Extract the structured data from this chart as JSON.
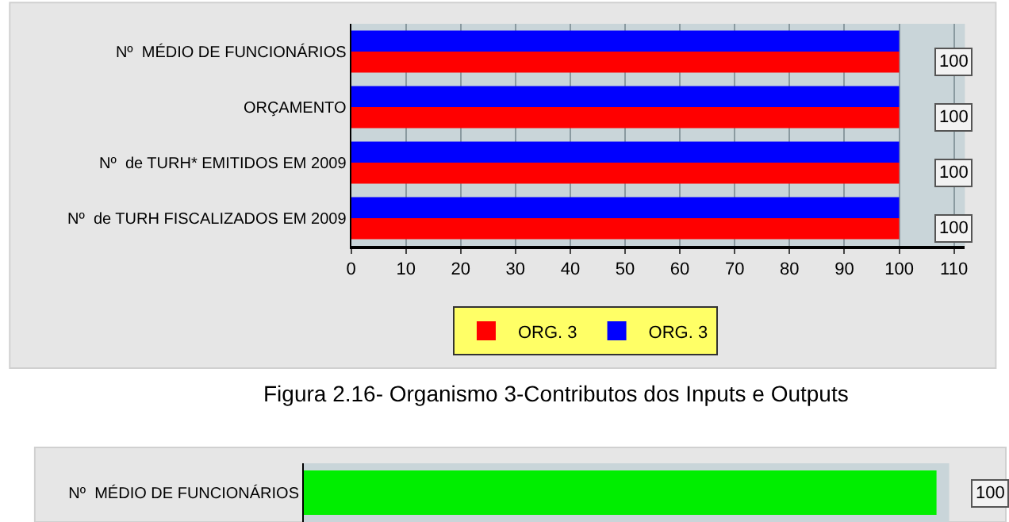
{
  "chart_data": [
    {
      "type": "bar",
      "orientation": "horizontal",
      "categories": [
        "Nº  MÉDIO DE FUNCIONÁRIOS",
        "ORÇAMENTO",
        "Nº  de TURH* EMITIDOS EM 2009",
        "Nº  de TURH FISCALIZADOS EM 2009"
      ],
      "series": [
        {
          "name": "ORG. 3",
          "color": "#ff0000",
          "values": [
            100,
            100,
            100,
            100
          ],
          "value_labels": [
            "100",
            "100",
            "100",
            "100"
          ]
        },
        {
          "name": "ORG. 3",
          "color": "#0000ff",
          "values": [
            100,
            100,
            100,
            100
          ]
        }
      ],
      "xlim": [
        0,
        112
      ],
      "xticks": [
        0,
        10,
        20,
        30,
        40,
        50,
        60,
        70,
        80,
        90,
        100,
        110
      ],
      "grid": "x",
      "legend": "bottom",
      "annotations": [
        "Figura 2.16- Organismo 3-Contributos dos Inputs e Outputs"
      ]
    },
    {
      "type": "bar",
      "orientation": "horizontal",
      "categories": [
        "Nº  MÉDIO DE FUNCIONÁRIOS"
      ],
      "series": [
        {
          "color": "#00ee00",
          "values": [
            100
          ],
          "value_labels": [
            "100"
          ]
        }
      ],
      "tick_labels": "y"
    }
  ]
}
